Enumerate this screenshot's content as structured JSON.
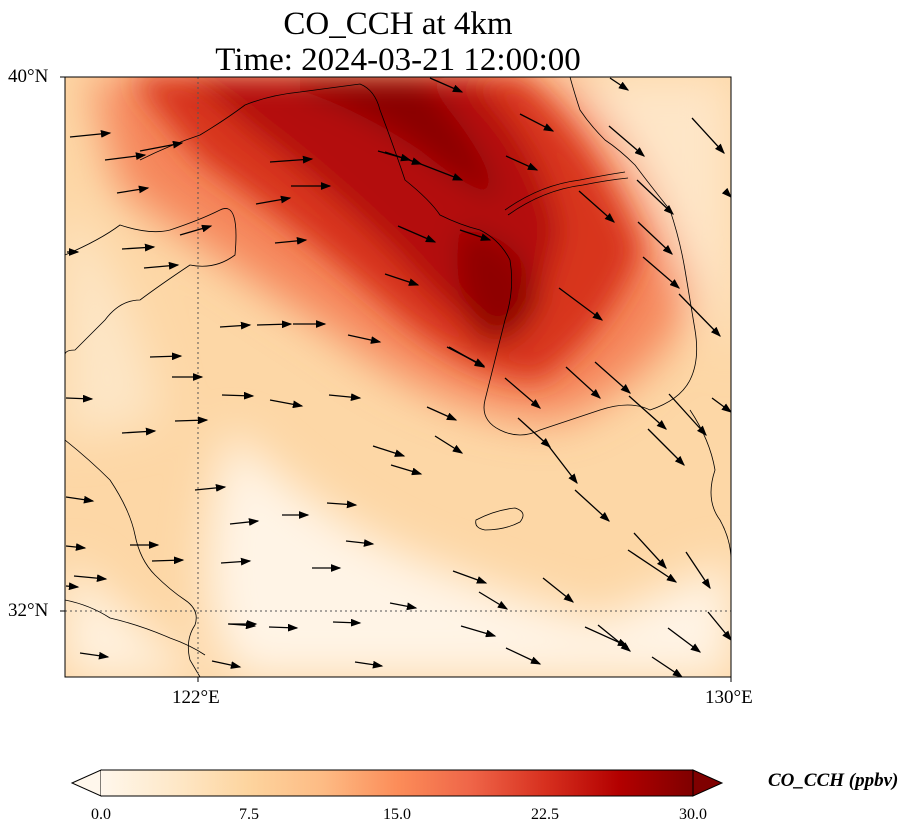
{
  "title": {
    "line1": "CO_CCH at 4km",
    "line2": "Time: 2024-03-21 12:00:00"
  },
  "map": {
    "type": "filled contour map with wind vectors",
    "variable": "CO_CCH",
    "level": "4km",
    "colormap": "OrRd",
    "extent": {
      "lon": [
        120,
        130
      ],
      "lat": [
        31,
        40
      ]
    },
    "gridlines": {
      "lon": [
        122
      ],
      "lat": [
        32
      ],
      "style": "dotted"
    },
    "lat_ticks": [
      {
        "value": 40,
        "label": "40°N"
      },
      {
        "value": 32,
        "label": "32°N"
      }
    ],
    "lon_ticks": [
      {
        "value": 122,
        "label": "122°E"
      },
      {
        "value": 130,
        "label": "130°E"
      }
    ],
    "field_description": "High values (22–30 ppbv) in a band from the northwest corner through the Korean west coast; low values (0–7.5 ppbv) over the East China Sea and southeast",
    "wind": "predominantly westerly to northwesterly vectors"
  },
  "colorbar": {
    "label": "CO_CCH (ppbv)",
    "min": 0,
    "max": 30,
    "ticks": [
      "0.0",
      "7.5",
      "15.0",
      "22.5",
      "30.0"
    ],
    "extend": "both",
    "colors": [
      "#fff7ec",
      "#fee8c8",
      "#fdd49e",
      "#fdbb84",
      "#fc8d59",
      "#ef6548",
      "#d7301f",
      "#b30000",
      "#7f0000"
    ]
  }
}
